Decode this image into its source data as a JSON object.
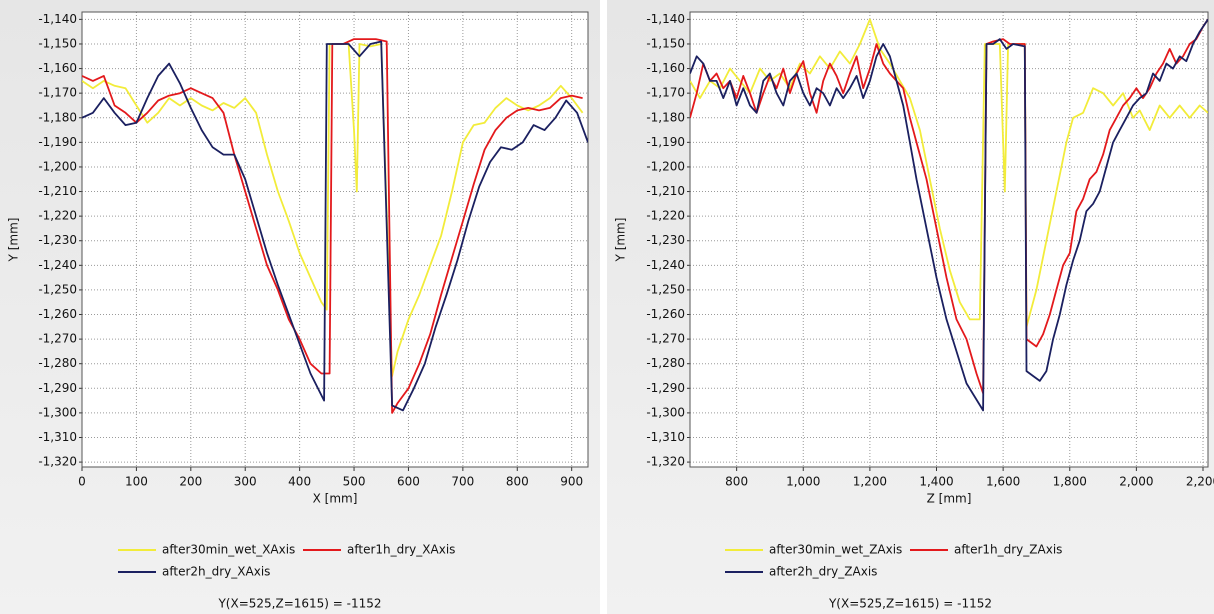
{
  "chart_data": [
    {
      "type": "line",
      "x_label": "X [mm]",
      "y_label": "Y [mm]",
      "status": "Y(X=525,Z=1615) = -1152",
      "xlim": [
        0,
        930
      ],
      "ylim": [
        -1322,
        -1137
      ],
      "grid": true,
      "xticks": [
        0,
        100,
        200,
        300,
        400,
        500,
        600,
        700,
        800,
        900
      ],
      "yticks": [
        {
          "value": -1140,
          "label": "-1,140"
        },
        {
          "value": -1150,
          "label": "-1,150"
        },
        {
          "value": -1160,
          "label": "-1,160"
        },
        {
          "value": -1170,
          "label": "-1,170"
        },
        {
          "value": -1180,
          "label": "-1,180"
        },
        {
          "value": -1190,
          "label": "-1,190"
        },
        {
          "value": -1200,
          "label": "-1,200"
        },
        {
          "value": -1210,
          "label": "-1,210"
        },
        {
          "value": -1220,
          "label": "-1,220"
        },
        {
          "value": -1230,
          "label": "-1,230"
        },
        {
          "value": -1240,
          "label": "-1,240"
        },
        {
          "value": -1250,
          "label": "-1,250"
        },
        {
          "value": -1260,
          "label": "-1,260"
        },
        {
          "value": -1270,
          "label": "-1,270"
        },
        {
          "value": -1280,
          "label": "-1,280"
        },
        {
          "value": -1290,
          "label": "-1,290"
        },
        {
          "value": -1300,
          "label": "-1,300"
        },
        {
          "value": -1310,
          "label": "-1,310"
        },
        {
          "value": -1320,
          "label": "-1,320"
        }
      ],
      "series": [
        {
          "name": "after30min_wet_XAxis",
          "color": "#f2ec3a",
          "x": [
            0,
            20,
            40,
            60,
            80,
            100,
            120,
            140,
            160,
            180,
            200,
            220,
            240,
            260,
            280,
            300,
            320,
            340,
            360,
            380,
            400,
            420,
            440,
            450,
            455,
            480,
            490,
            500,
            505,
            510,
            530,
            550,
            570,
            580,
            600,
            620,
            640,
            660,
            680,
            700,
            720,
            740,
            760,
            780,
            800,
            820,
            840,
            860,
            880,
            900,
            920
          ],
          "values": [
            -1165,
            -1168,
            -1165,
            -1167,
            -1168,
            -1175,
            -1182,
            -1178,
            -1172,
            -1175,
            -1172,
            -1175,
            -1177,
            -1174,
            -1176,
            -1172,
            -1178,
            -1195,
            -1210,
            -1222,
            -1235,
            -1245,
            -1255,
            -1258,
            -1150,
            -1150,
            -1150,
            -1185,
            -1210,
            -1150,
            -1151,
            -1150,
            -1285,
            -1275,
            -1262,
            -1252,
            -1240,
            -1228,
            -1210,
            -1190,
            -1183,
            -1182,
            -1176,
            -1172,
            -1175,
            -1177,
            -1175,
            -1172,
            -1167,
            -1172,
            -1178
          ]
        },
        {
          "name": "after1h_dry_XAxis",
          "color": "#e3191c",
          "x": [
            0,
            20,
            40,
            60,
            80,
            100,
            120,
            140,
            160,
            180,
            200,
            220,
            240,
            260,
            280,
            300,
            320,
            340,
            360,
            380,
            400,
            420,
            440,
            455,
            460,
            480,
            500,
            520,
            540,
            560,
            570,
            580,
            600,
            620,
            640,
            660,
            680,
            700,
            720,
            740,
            760,
            780,
            800,
            820,
            840,
            860,
            880,
            900,
            920
          ],
          "values": [
            -1163,
            -1165,
            -1163,
            -1175,
            -1178,
            -1182,
            -1178,
            -1173,
            -1171,
            -1170,
            -1168,
            -1170,
            -1172,
            -1178,
            -1195,
            -1210,
            -1225,
            -1240,
            -1250,
            -1262,
            -1270,
            -1280,
            -1284,
            -1284,
            -1150,
            -1150,
            -1148,
            -1148,
            -1148,
            -1149,
            -1300,
            -1296,
            -1290,
            -1280,
            -1268,
            -1252,
            -1237,
            -1222,
            -1207,
            -1193,
            -1185,
            -1180,
            -1177,
            -1176,
            -1177,
            -1176,
            -1172,
            -1171,
            -1172
          ]
        },
        {
          "name": "after2h_dry_XAxis",
          "color": "#1b2060",
          "x": [
            0,
            20,
            40,
            60,
            80,
            100,
            120,
            140,
            160,
            180,
            200,
            220,
            240,
            260,
            280,
            300,
            320,
            340,
            360,
            380,
            400,
            420,
            445,
            450,
            470,
            490,
            510,
            530,
            550,
            570,
            590,
            610,
            630,
            650,
            670,
            690,
            710,
            730,
            750,
            770,
            790,
            810,
            830,
            850,
            870,
            890,
            910,
            930
          ],
          "values": [
            -1180,
            -1178,
            -1172,
            -1178,
            -1183,
            -1182,
            -1172,
            -1163,
            -1158,
            -1166,
            -1176,
            -1185,
            -1192,
            -1195,
            -1195,
            -1205,
            -1220,
            -1235,
            -1248,
            -1260,
            -1272,
            -1284,
            -1295,
            -1150,
            -1150,
            -1150,
            -1155,
            -1150,
            -1149,
            -1297,
            -1299,
            -1290,
            -1280,
            -1265,
            -1252,
            -1238,
            -1222,
            -1208,
            -1198,
            -1192,
            -1193,
            -1190,
            -1183,
            -1185,
            -1180,
            -1173,
            -1178,
            -1190
          ]
        }
      ]
    },
    {
      "type": "line",
      "x_label": "Z [mm]",
      "y_label": "Y [mm]",
      "status": "Y(X=525,Z=1615) = -1152",
      "xlim": [
        660,
        2215
      ],
      "ylim": [
        -1322,
        -1137
      ],
      "grid": true,
      "xticks": [
        800,
        {
          "value": 1000,
          "label": "1,000"
        },
        {
          "value": 1200,
          "label": "1,200"
        },
        {
          "value": 1400,
          "label": "1,400"
        },
        {
          "value": 1600,
          "label": "1,600"
        },
        {
          "value": 1800,
          "label": "1,800"
        },
        {
          "value": 2000,
          "label": "2,000"
        },
        {
          "value": 2200,
          "label": "2,200"
        }
      ],
      "yticks": [
        {
          "value": -1140,
          "label": "-1,140"
        },
        {
          "value": -1150,
          "label": "-1,150"
        },
        {
          "value": -1160,
          "label": "-1,160"
        },
        {
          "value": -1170,
          "label": "-1,170"
        },
        {
          "value": -1180,
          "label": "-1,180"
        },
        {
          "value": -1190,
          "label": "-1,190"
        },
        {
          "value": -1200,
          "label": "-1,200"
        },
        {
          "value": -1210,
          "label": "-1,210"
        },
        {
          "value": -1220,
          "label": "-1,220"
        },
        {
          "value": -1230,
          "label": "-1,230"
        },
        {
          "value": -1240,
          "label": "-1,240"
        },
        {
          "value": -1250,
          "label": "-1,250"
        },
        {
          "value": -1260,
          "label": "-1,260"
        },
        {
          "value": -1270,
          "label": "-1,270"
        },
        {
          "value": -1280,
          "label": "-1,280"
        },
        {
          "value": -1290,
          "label": "-1,290"
        },
        {
          "value": -1300,
          "label": "-1,300"
        },
        {
          "value": -1310,
          "label": "-1,310"
        },
        {
          "value": -1320,
          "label": "-1,320"
        }
      ],
      "series": [
        {
          "name": "after30min_wet_ZAxis",
          "color": "#f2ec3a",
          "x": [
            660,
            690,
            720,
            750,
            780,
            810,
            840,
            870,
            900,
            930,
            960,
            990,
            1020,
            1050,
            1080,
            1110,
            1140,
            1170,
            1200,
            1230,
            1260,
            1290,
            1320,
            1350,
            1380,
            1410,
            1440,
            1470,
            1500,
            1530,
            1545,
            1570,
            1590,
            1605,
            1615,
            1640,
            1665,
            1670,
            1700,
            1730,
            1760,
            1790,
            1810,
            1840,
            1870,
            1900,
            1930,
            1960,
            1990,
            2010,
            2040,
            2070,
            2100,
            2130,
            2160,
            2190,
            2215
          ],
          "values": [
            -1165,
            -1172,
            -1165,
            -1168,
            -1160,
            -1165,
            -1170,
            -1160,
            -1165,
            -1162,
            -1168,
            -1158,
            -1162,
            -1155,
            -1160,
            -1153,
            -1158,
            -1150,
            -1140,
            -1152,
            -1158,
            -1165,
            -1172,
            -1185,
            -1205,
            -1225,
            -1242,
            -1255,
            -1262,
            -1262,
            -1150,
            -1150,
            -1150,
            -1210,
            -1150,
            -1150,
            -1150,
            -1265,
            -1250,
            -1230,
            -1210,
            -1190,
            -1180,
            -1178,
            -1168,
            -1170,
            -1175,
            -1170,
            -1180,
            -1177,
            -1185,
            -1175,
            -1180,
            -1175,
            -1180,
            -1175,
            -1178
          ]
        },
        {
          "name": "after1h_dry_ZAxis",
          "color": "#e3191c",
          "x": [
            660,
            680,
            700,
            720,
            740,
            760,
            780,
            800,
            820,
            840,
            860,
            880,
            900,
            920,
            940,
            960,
            980,
            1000,
            1020,
            1040,
            1060,
            1080,
            1100,
            1120,
            1140,
            1160,
            1180,
            1200,
            1220,
            1240,
            1260,
            1280,
            1300,
            1320,
            1340,
            1370,
            1400,
            1430,
            1460,
            1490,
            1520,
            1540,
            1550,
            1570,
            1600,
            1620,
            1640,
            1665,
            1670,
            1700,
            1720,
            1740,
            1760,
            1780,
            1800,
            1820,
            1840,
            1860,
            1880,
            1900,
            1920,
            1940,
            1960,
            1980,
            2000,
            2020,
            2040,
            2060,
            2080,
            2100,
            2120,
            2140,
            2160,
            2180,
            2200,
            2215
          ],
          "values": [
            -1180,
            -1170,
            -1158,
            -1165,
            -1162,
            -1168,
            -1165,
            -1172,
            -1163,
            -1170,
            -1178,
            -1170,
            -1163,
            -1168,
            -1160,
            -1170,
            -1162,
            -1157,
            -1170,
            -1178,
            -1165,
            -1158,
            -1163,
            -1170,
            -1162,
            -1155,
            -1168,
            -1160,
            -1150,
            -1158,
            -1162,
            -1165,
            -1168,
            -1180,
            -1190,
            -1205,
            -1225,
            -1245,
            -1262,
            -1270,
            -1284,
            -1292,
            -1150,
            -1149,
            -1148,
            -1150,
            -1150,
            -1150,
            -1270,
            -1273,
            -1268,
            -1260,
            -1250,
            -1240,
            -1235,
            -1218,
            -1213,
            -1205,
            -1202,
            -1195,
            -1185,
            -1180,
            -1175,
            -1172,
            -1168,
            -1172,
            -1168,
            -1162,
            -1158,
            -1152,
            -1158,
            -1155,
            -1150,
            -1148,
            -1143,
            -1140
          ]
        },
        {
          "name": "after2h_dry_ZAxis",
          "color": "#1b2060",
          "x": [
            660,
            680,
            700,
            720,
            740,
            760,
            780,
            800,
            820,
            840,
            860,
            880,
            900,
            920,
            940,
            960,
            980,
            1000,
            1020,
            1040,
            1060,
            1080,
            1100,
            1120,
            1140,
            1160,
            1180,
            1200,
            1220,
            1240,
            1260,
            1280,
            1300,
            1320,
            1340,
            1370,
            1400,
            1430,
            1460,
            1490,
            1540,
            1550,
            1570,
            1590,
            1610,
            1630,
            1665,
            1670,
            1690,
            1710,
            1730,
            1750,
            1770,
            1790,
            1810,
            1830,
            1850,
            1870,
            1890,
            1910,
            1930,
            1950,
            1970,
            1990,
            2010,
            2030,
            2050,
            2070,
            2090,
            2110,
            2130,
            2150,
            2170,
            2190,
            2215
          ],
          "values": [
            -1162,
            -1155,
            -1158,
            -1165,
            -1165,
            -1172,
            -1165,
            -1175,
            -1168,
            -1175,
            -1178,
            -1165,
            -1162,
            -1170,
            -1175,
            -1165,
            -1162,
            -1170,
            -1175,
            -1168,
            -1170,
            -1175,
            -1168,
            -1172,
            -1168,
            -1163,
            -1172,
            -1165,
            -1155,
            -1150,
            -1155,
            -1165,
            -1175,
            -1190,
            -1205,
            -1225,
            -1245,
            -1262,
            -1275,
            -1288,
            -1299,
            -1150,
            -1150,
            -1148,
            -1152,
            -1150,
            -1151,
            -1283,
            -1285,
            -1287,
            -1283,
            -1270,
            -1260,
            -1248,
            -1238,
            -1230,
            -1218,
            -1215,
            -1210,
            -1200,
            -1190,
            -1185,
            -1180,
            -1175,
            -1172,
            -1170,
            -1162,
            -1165,
            -1158,
            -1160,
            -1155,
            -1157,
            -1150,
            -1145,
            -1140
          ]
        }
      ]
    }
  ]
}
